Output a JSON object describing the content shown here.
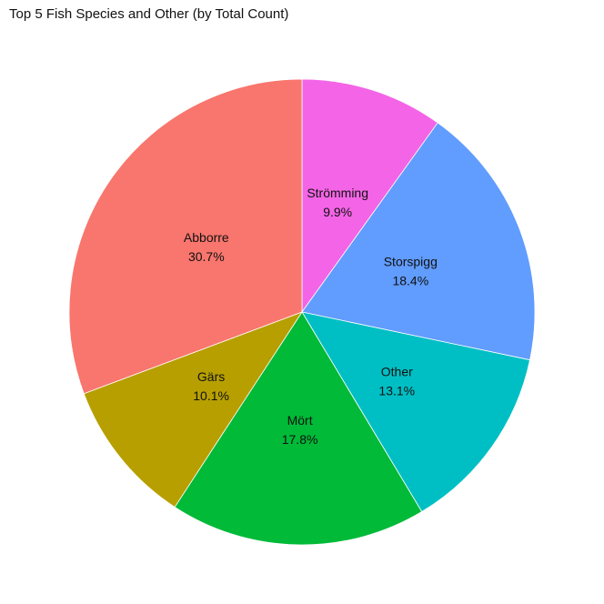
{
  "chart_data": {
    "type": "pie",
    "title": "Top 5 Fish Species and Other (by Total Count)",
    "direction": "clockwise",
    "start": "top",
    "slices": [
      {
        "label": "Strömming",
        "percent_label": "9.9%",
        "value": 9.9,
        "color": "#F365E6"
      },
      {
        "label": "Storspigg",
        "percent_label": "18.4%",
        "value": 18.4,
        "color": "#619CFF"
      },
      {
        "label": "Other",
        "percent_label": "13.1%",
        "value": 13.1,
        "color": "#00BFC4"
      },
      {
        "label": "Mört",
        "percent_label": "17.8%",
        "value": 17.8,
        "color": "#00BA38"
      },
      {
        "label": "Gärs",
        "percent_label": "10.1%",
        "value": 10.1,
        "color": "#B79F00"
      },
      {
        "label": "Abborre",
        "percent_label": "30.7%",
        "value": 30.7,
        "color": "#F8766D"
      }
    ]
  }
}
